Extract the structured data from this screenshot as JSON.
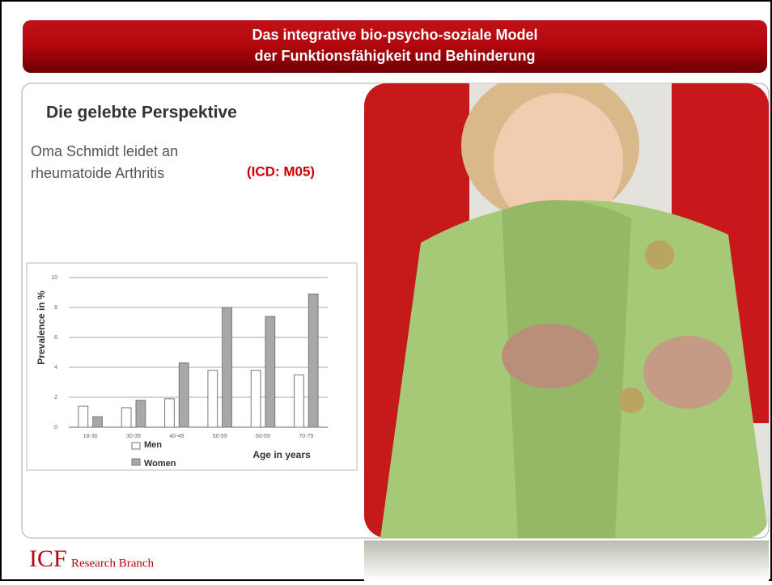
{
  "header": {
    "title_line1": "Das integrative bio-psycho-soziale Model",
    "title_line2": "der Funktionsfähigkeit und Behinderung"
  },
  "body": {
    "heading": "Die gelebte Perspektive",
    "text_line1": "Oma Schmidt leidet an",
    "text_line2": "rheumatoide Arthritis",
    "code": "(ICD: M05)"
  },
  "footer": {
    "logo_main": "ICF",
    "logo_sub": "Research Branch"
  },
  "chart_data": {
    "type": "bar",
    "y_label": "Prevalence in %",
    "x_label": "Age in years",
    "categories": [
      "18-30",
      "30-39",
      "40-49",
      "50-59",
      "60-69",
      "70-79"
    ],
    "series": [
      {
        "name": "Men",
        "color": "#ffffff",
        "values": [
          1.4,
          1.3,
          1.9,
          3.8,
          3.8,
          3.5
        ]
      },
      {
        "name": "Women",
        "color": "#a8a8a8",
        "values": [
          0.7,
          1.8,
          4.3,
          8.0,
          7.4,
          8.9
        ]
      }
    ],
    "ylim": [
      0,
      10
    ],
    "yticks": [
      0,
      2,
      4,
      6,
      8,
      10
    ],
    "grid": true
  }
}
